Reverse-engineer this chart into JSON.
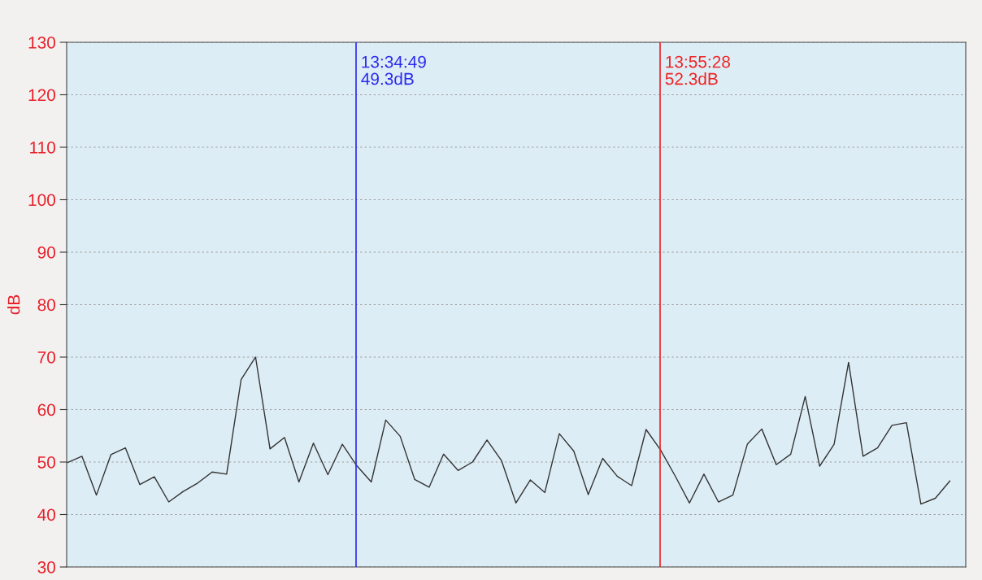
{
  "chart_data": {
    "type": "line",
    "ylabel": "dB",
    "categories": [
      null,
      null,
      null,
      null,
      null,
      null,
      null,
      null,
      null,
      null,
      null,
      null,
      null,
      null,
      null,
      null,
      null,
      null,
      null,
      null,
      null,
      null,
      null,
      null,
      null,
      null,
      null,
      null,
      null,
      null,
      null,
      null,
      null,
      null,
      null,
      null,
      null,
      null,
      null,
      null,
      null,
      null,
      null,
      null,
      null,
      null,
      null,
      null,
      null,
      null,
      null,
      null,
      null,
      null,
      null,
      null,
      null,
      null,
      null,
      null,
      null,
      null
    ],
    "series": [
      {
        "color": "#333333",
        "values": [
          49.9,
          51.1,
          43.7,
          51.4,
          52.7,
          45.7,
          47.2,
          42.4,
          44.4,
          46.0,
          48.1,
          47.7,
          65.7,
          70.0,
          52.5,
          54.7,
          46.2,
          53.6,
          47.6,
          53.4,
          49.3,
          46.2,
          58.0,
          54.9,
          46.7,
          45.2,
          51.5,
          48.4,
          50.0,
          54.2,
          50.3,
          42.2,
          46.6,
          44.2,
          55.4,
          52.1,
          43.8,
          50.7,
          47.3,
          45.5,
          56.2,
          52.3,
          47.4,
          42.2,
          47.7,
          42.4,
          43.7,
          53.4,
          56.3,
          49.5,
          51.5,
          62.5,
          49.2,
          53.4,
          69.0,
          51.1,
          52.7,
          57.0,
          57.5,
          42.0,
          43.1,
          46.4
        ]
      }
    ],
    "ylim": [
      30,
      130
    ],
    "yticks": [
      30,
      40,
      50,
      60,
      70,
      80,
      90,
      100,
      110,
      120,
      130
    ],
    "annotations": [
      "13:34:49\n49.3dB",
      "13:55:28\n52.3dB"
    ],
    "grid": "y",
    "marker": "none",
    "line_style": "solid",
    "legend": false,
    "tick_labels": "y"
  }
}
